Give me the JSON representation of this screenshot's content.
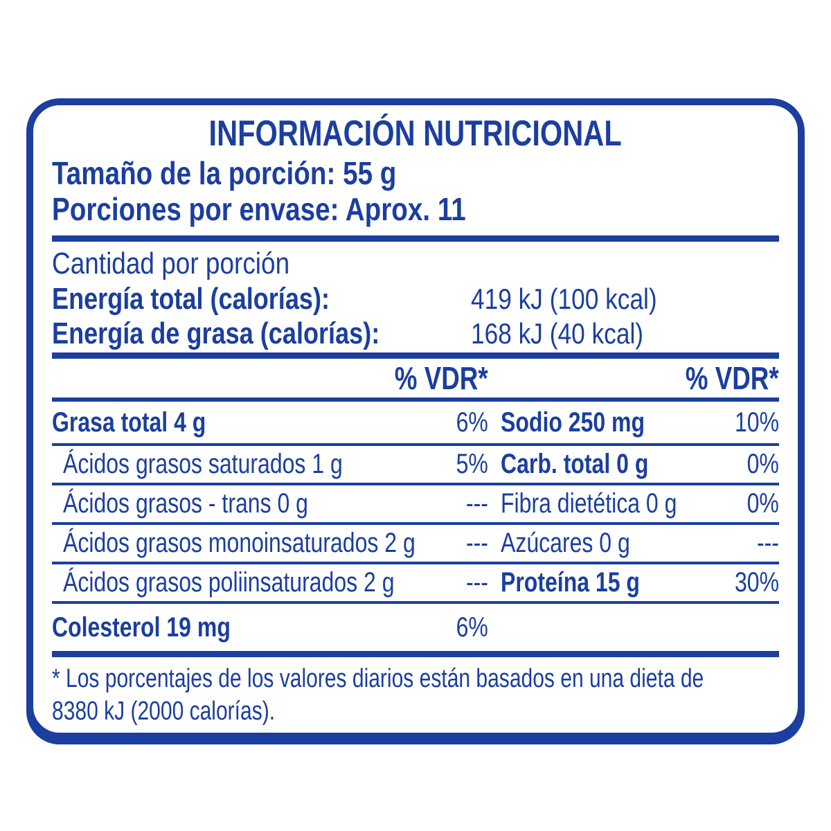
{
  "colors": {
    "blue": "#1B3E9F",
    "background": "#FFFFFF"
  },
  "label": {
    "title": "INFORMACIÓN NUTRICIONAL",
    "serving_size": "Tamaño de la porción: 55 g",
    "servings_per_container": "Porciones por envase: Aprox. 11",
    "amount_per_serving": "Cantidad por porción",
    "energy_rows": [
      {
        "label": "Energía total (calorías):",
        "value": "419 kJ (100 kcal)"
      },
      {
        "label": "Energía de grasa (calorías):",
        "value": "168 kJ (40 kcal)"
      }
    ],
    "vdr_header_left": "% VDR*",
    "vdr_header_right": "% VDR*",
    "rows": [
      {
        "left_label": "Grasa total 4 g",
        "left_value": "6%",
        "right_label": "Sodio 250 mg",
        "right_value": "10%"
      },
      {
        "left_label": "Ácidos grasos saturados 1 g",
        "left_value": "5%",
        "right_label": "Carb. total 0 g",
        "right_value": "0%"
      },
      {
        "left_label": "Ácidos grasos - trans 0 g",
        "left_value": "---",
        "right_label": "Fibra dietética 0 g",
        "right_value": "0%"
      },
      {
        "left_label": "Ácidos grasos monoinsaturados 2 g",
        "left_value": "---",
        "right_label": "Azúcares 0 g",
        "right_value": "---"
      },
      {
        "left_label": "Ácidos grasos poliinsaturados 2 g",
        "left_value": "---",
        "right_label": "Proteína 15 g",
        "right_value": "30%"
      },
      {
        "left_label": "Colesterol 19 mg",
        "left_value": "6%",
        "right_label": "",
        "right_value": ""
      }
    ],
    "footnote_line1": "* Los porcentajes de los valores diarios están basados en una dieta de",
    "footnote_line2": "8380 kJ (2000 calorías)."
  }
}
